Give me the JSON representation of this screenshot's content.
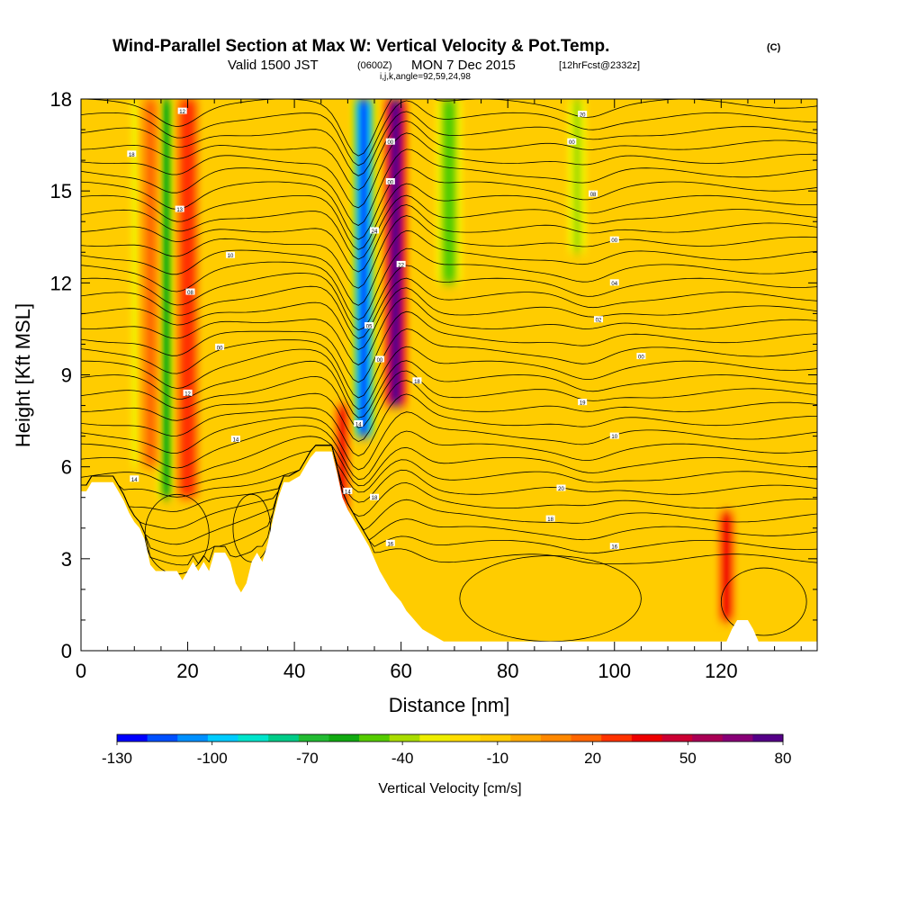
{
  "chart_data": {
    "type": "heatmap",
    "title": "Wind-Parallel Section at Max W: Vertical Velocity & Pot.Temp.",
    "title_mark": "(C)",
    "subtitle_main": "Valid 1500 JST",
    "subtitle_utc": "(0600Z)",
    "subtitle_date": "MON 7 Dec 2015",
    "subtitle_fcst": "[12hrFcst@2332z]",
    "subtitle_params": "i,j,k,angle=92,59,24,98",
    "xlabel": "Distance [nm]",
    "ylabel": "Height [Kft MSL]",
    "xlim": [
      0,
      138
    ],
    "ylim": [
      0,
      18
    ],
    "x_ticks": [
      0,
      20,
      40,
      60,
      80,
      100,
      120
    ],
    "y_ticks": [
      0,
      3,
      6,
      9,
      12,
      15,
      18
    ],
    "colorbar_label": "Vertical Velocity [cm/s]",
    "colorbar_range": [
      -130,
      80
    ],
    "colorbar_labels": [
      -130,
      -100,
      -70,
      -40,
      -10,
      20,
      50,
      80
    ],
    "colorbar_colors": [
      "#0000ff",
      "#0050ff",
      "#0090ff",
      "#00ccff",
      "#00e5cc",
      "#00cc88",
      "#22bb33",
      "#11aa11",
      "#55cc00",
      "#aadd00",
      "#eeee00",
      "#ffdd00",
      "#ffcc00",
      "#ffaa00",
      "#ff8800",
      "#ff6600",
      "#ff3300",
      "#ee0000",
      "#cc0033",
      "#aa0055",
      "#880077",
      "#550088"
    ],
    "updrafts": [
      {
        "x": 20,
        "width": 1.8,
        "peak_cm_s": 30,
        "range_kft": [
          5,
          18
        ]
      },
      {
        "x": 13,
        "width": 1.4,
        "peak_cm_s": 15,
        "range_kft": [
          6,
          18
        ]
      },
      {
        "x": 49,
        "width": 1.2,
        "peak_cm_s": 40,
        "range_kft": [
          4.5,
          8
        ]
      },
      {
        "x": 59,
        "width": 1.8,
        "peak_cm_s": 75,
        "range_kft": [
          8,
          18
        ]
      },
      {
        "x": 121,
        "width": 1.4,
        "peak_cm_s": 35,
        "range_kft": [
          1,
          4.5
        ]
      }
    ],
    "downdrafts": [
      {
        "x": 16,
        "width": 1.5,
        "peak_cm_s": -60,
        "range_kft": [
          5,
          18
        ]
      },
      {
        "x": 10,
        "width": 1.0,
        "peak_cm_s": -30,
        "range_kft": [
          6,
          18
        ]
      },
      {
        "x": 53,
        "width": 1.8,
        "peak_cm_s": -115,
        "range_kft": [
          7,
          18
        ]
      },
      {
        "x": 69,
        "width": 2.5,
        "peak_cm_s": -45,
        "range_kft": [
          12,
          18
        ]
      },
      {
        "x": 93,
        "width": 1.8,
        "peak_cm_s": -40,
        "range_kft": [
          13,
          18
        ]
      }
    ],
    "terrain_kft": [
      [
        0,
        5.2
      ],
      [
        1,
        5.2
      ],
      [
        2,
        5.5
      ],
      [
        3,
        5.5
      ],
      [
        4,
        5.5
      ],
      [
        5,
        5.5
      ],
      [
        6,
        5.5
      ],
      [
        7,
        5.2
      ],
      [
        8,
        4.9
      ],
      [
        9,
        4.5
      ],
      [
        10,
        4.2
      ],
      [
        11,
        4.0
      ],
      [
        12,
        3.6
      ],
      [
        13,
        2.8
      ],
      [
        14,
        2.6
      ],
      [
        15,
        2.6
      ],
      [
        16,
        2.6
      ],
      [
        17,
        2.6
      ],
      [
        18,
        2.6
      ],
      [
        19,
        2.3
      ],
      [
        20,
        2.6
      ],
      [
        21,
        2.9
      ],
      [
        22,
        2.6
      ],
      [
        23,
        2.9
      ],
      [
        24,
        2.6
      ],
      [
        25,
        3.2
      ],
      [
        26,
        3.2
      ],
      [
        27,
        3.2
      ],
      [
        28,
        2.9
      ],
      [
        29,
        2.2
      ],
      [
        30,
        1.9
      ],
      [
        31,
        2.2
      ],
      [
        32,
        2.9
      ],
      [
        33,
        3.2
      ],
      [
        34,
        2.9
      ],
      [
        35,
        3.5
      ],
      [
        36,
        4.3
      ],
      [
        37,
        5.0
      ],
      [
        38,
        5.5
      ],
      [
        39,
        5.5
      ],
      [
        40,
        5.6
      ],
      [
        41,
        5.7
      ],
      [
        42,
        6.0
      ],
      [
        43,
        6.3
      ],
      [
        44,
        6.5
      ],
      [
        45,
        6.5
      ],
      [
        46,
        6.5
      ],
      [
        47,
        6.5
      ],
      [
        48,
        5.8
      ],
      [
        49,
        5.0
      ],
      [
        50,
        4.6
      ],
      [
        51,
        4.3
      ],
      [
        52,
        4.0
      ],
      [
        53,
        3.7
      ],
      [
        54,
        3.4
      ],
      [
        55,
        3.0
      ],
      [
        56,
        2.6
      ],
      [
        57,
        2.3
      ],
      [
        58,
        2.0
      ],
      [
        59,
        1.8
      ],
      [
        60,
        1.6
      ],
      [
        61,
        1.3
      ],
      [
        62,
        1.1
      ],
      [
        63,
        0.9
      ],
      [
        64,
        0.7
      ],
      [
        65,
        0.6
      ],
      [
        66,
        0.5
      ],
      [
        67,
        0.4
      ],
      [
        68,
        0.3
      ],
      [
        70,
        0.3
      ],
      [
        118,
        0.3
      ],
      [
        121,
        0.3
      ],
      [
        122,
        0.7
      ],
      [
        123,
        1.0
      ],
      [
        125,
        1.0
      ],
      [
        126,
        0.7
      ],
      [
        127,
        0.3
      ],
      [
        138,
        0.3
      ]
    ],
    "theta_contour_labels": [
      {
        "x": 19,
        "y": 17.6,
        "t": "12"
      },
      {
        "x": 9.5,
        "y": 16.2,
        "t": "18"
      },
      {
        "x": 18.5,
        "y": 14.4,
        "t": "13"
      },
      {
        "x": 28,
        "y": 12.9,
        "t": "10"
      },
      {
        "x": 20.5,
        "y": 11.7,
        "t": "08"
      },
      {
        "x": 26,
        "y": 9.9,
        "t": "00"
      },
      {
        "x": 20,
        "y": 8.4,
        "t": "12"
      },
      {
        "x": 29,
        "y": 6.9,
        "t": "14"
      },
      {
        "x": 10,
        "y": 5.6,
        "t": "14"
      },
      {
        "x": 58,
        "y": 16.6,
        "t": "00"
      },
      {
        "x": 58,
        "y": 15.3,
        "t": "00"
      },
      {
        "x": 55,
        "y": 13.7,
        "t": "24"
      },
      {
        "x": 60,
        "y": 12.6,
        "t": "22"
      },
      {
        "x": 54,
        "y": 10.6,
        "t": "05"
      },
      {
        "x": 56,
        "y": 9.5,
        "t": "00"
      },
      {
        "x": 63,
        "y": 8.8,
        "t": "18"
      },
      {
        "x": 52,
        "y": 7.4,
        "t": "14"
      },
      {
        "x": 50,
        "y": 5.2,
        "t": "14"
      },
      {
        "x": 55,
        "y": 5.0,
        "t": "18"
      },
      {
        "x": 58,
        "y": 3.5,
        "t": "16"
      },
      {
        "x": 94,
        "y": 17.5,
        "t": "20"
      },
      {
        "x": 92,
        "y": 16.6,
        "t": "00"
      },
      {
        "x": 96,
        "y": 14.9,
        "t": "08"
      },
      {
        "x": 100,
        "y": 13.4,
        "t": "00"
      },
      {
        "x": 100,
        "y": 12.0,
        "t": "04"
      },
      {
        "x": 97,
        "y": 10.8,
        "t": "02"
      },
      {
        "x": 105,
        "y": 9.6,
        "t": "00"
      },
      {
        "x": 94,
        "y": 8.1,
        "t": "19"
      },
      {
        "x": 100,
        "y": 7.0,
        "t": "10"
      },
      {
        "x": 90,
        "y": 5.3,
        "t": "20"
      },
      {
        "x": 88,
        "y": 4.3,
        "t": "18"
      },
      {
        "x": 100,
        "y": 3.4,
        "t": "16"
      }
    ]
  }
}
